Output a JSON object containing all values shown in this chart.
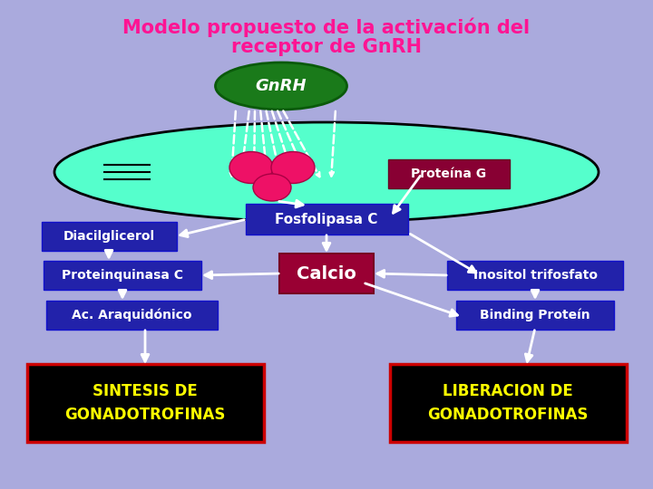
{
  "title_line1": "Modelo propuesto de la activación del",
  "title_line2": "receptor de GnRH",
  "title_color": "#FF1493",
  "bg_color": "#AAAADD",
  "fig_width": 7.2,
  "fig_height": 5.4,
  "dpi": 100,
  "gnrh_label": "GnRH",
  "proteina_g_label": "Proteína G",
  "fosfolipasa_label": "Fosfolipasa C",
  "diacilglicerol_label": "Diacilglicerol",
  "proteinquinasa_label": "Proteinquinasa C",
  "ac_araquidonico_label": "Ac. Araquidónico",
  "calcio_label": "Calcio",
  "inositol_label": "Inositol trifosfato",
  "binding_label": "Binding Proteín",
  "sintesis_label": "SINTESIS DE\nGONADOTROFINAS",
  "sintesis_color": "#FFFF00",
  "liberacion_label": "LIBERACION DE\nGONADOTROFINAS",
  "liberacion_color": "#FFFF00",
  "arrow_color": "#FFFFFF",
  "dark_blue": "#2222AA",
  "dark_red": "#880033",
  "black": "#000000"
}
